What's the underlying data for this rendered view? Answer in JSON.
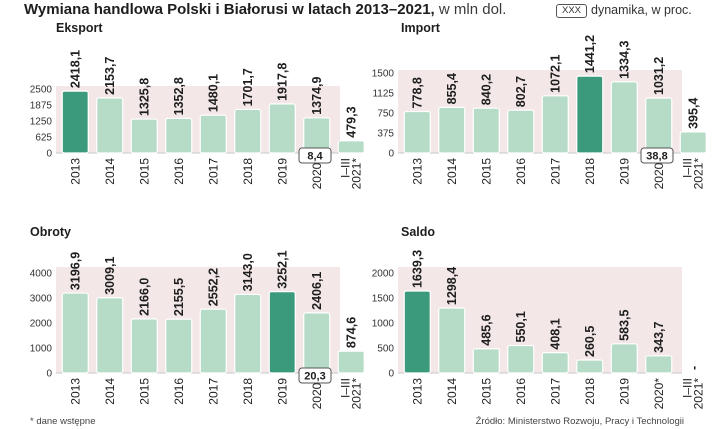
{
  "title": {
    "bold": "Wymiana handlowa Polski i Białorusi w latach 2013–2021,",
    "light": "w mln dol."
  },
  "legend": {
    "box": "XXX",
    "label": "dynamika, w proc."
  },
  "footnote": "* dane wstępne",
  "source": "Źródło: Ministerstwo Rozwoju, Pracy i Technologii",
  "colors": {
    "bar": "#b6dcc8",
    "highlight": "#3c9a7c",
    "band": "#f3e7e8"
  },
  "chart_data": [
    {
      "type": "bar",
      "title": "Eksport",
      "categories": [
        "2013",
        "2014",
        "2015",
        "2016",
        "2017",
        "2018",
        "2019",
        "2020*",
        "I–III 2021*"
      ],
      "values": [
        2418.1,
        2153.7,
        1325.8,
        1352.8,
        1480.1,
        1701.7,
        1917.8,
        1374.9,
        479.3
      ],
      "labels": [
        "2418,1",
        "2153,7",
        "1325,8",
        "1352,8",
        "1480,1",
        "1701,7",
        "1917,8",
        "1374,9",
        "479,3"
      ],
      "highlight": 0,
      "yticks": [
        0,
        625,
        1250,
        1875,
        2500
      ],
      "ylim": [
        0,
        2500
      ],
      "dynamics": "8,4"
    },
    {
      "type": "bar",
      "title": "Import",
      "categories": [
        "2013",
        "2014",
        "2015",
        "2016",
        "2017",
        "2018",
        "2019",
        "2020*",
        "I–III 2021*"
      ],
      "values": [
        778.8,
        855.4,
        840.2,
        802.7,
        1072.1,
        1441.2,
        1334.3,
        1031.2,
        395.4
      ],
      "labels": [
        "778,8",
        "855,4",
        "840,2",
        "802,7",
        "1072,1",
        "1441,2",
        "1334,3",
        "1031,2",
        "395,4"
      ],
      "highlight": 5,
      "yticks": [
        0,
        375,
        750,
        1125,
        1500
      ],
      "ylim": [
        0,
        1500
      ],
      "dynamics": "38,8"
    },
    {
      "type": "bar",
      "title": "Obroty",
      "categories": [
        "2013",
        "2014",
        "2015",
        "2016",
        "2017",
        "2018",
        "2019",
        "2020*",
        "I–III 2021*"
      ],
      "values": [
        3196.9,
        3009.1,
        2166.0,
        2155.5,
        2552.2,
        3143.0,
        3252.1,
        2406.1,
        874.6
      ],
      "labels": [
        "3196,9",
        "3009,1",
        "2166,0",
        "2155,5",
        "2552,2",
        "3143,0",
        "3252,1",
        "2406,1",
        "874,6"
      ],
      "highlight": 6,
      "yticks": [
        0,
        1000,
        2000,
        3000,
        4000
      ],
      "ylim": [
        0,
        4000
      ],
      "dynamics": "20,3"
    },
    {
      "type": "bar",
      "title": "Saldo",
      "categories": [
        "2013",
        "2014",
        "2015",
        "2016",
        "2017",
        "2018",
        "2019",
        "2020*",
        "I–III 2021*"
      ],
      "values": [
        1639.3,
        1298.4,
        485.6,
        550.1,
        408.1,
        260.5,
        583.5,
        343.7,
        0
      ],
      "labels": [
        "1639,3",
        "1298,4",
        "485,6",
        "550,1",
        "408,1",
        "260,5",
        "583,5",
        "343,7",
        "-"
      ],
      "highlight": 0,
      "yticks": [
        0,
        500,
        1000,
        1500,
        2000
      ],
      "ylim": [
        0,
        2000
      ]
    }
  ]
}
